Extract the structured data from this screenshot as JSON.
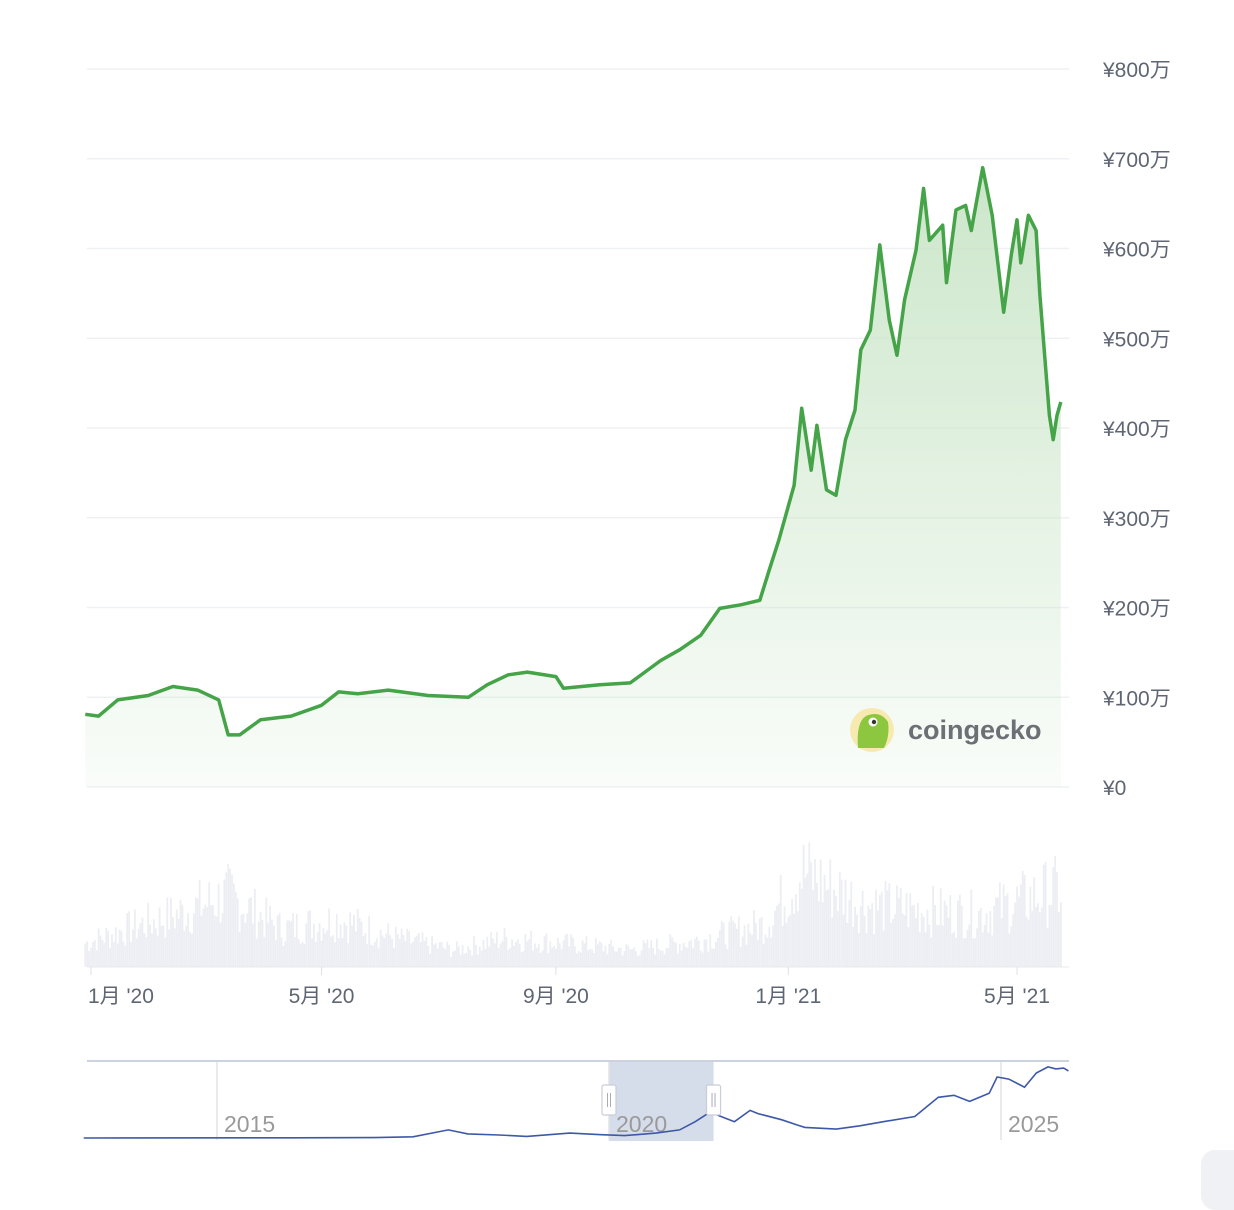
{
  "chart_data": {
    "type": "area",
    "currency_symbol": "¥",
    "y_ticks": [
      "¥0",
      "¥100万",
      "¥200万",
      "¥300万",
      "¥400万",
      "¥500万",
      "¥600万",
      "¥700万",
      "¥800万"
    ],
    "y_unit": "万",
    "ylim": [
      0,
      800
    ],
    "x_ticks": [
      {
        "date": "2020-01-01",
        "label": "1月 '20"
      },
      {
        "date": "2020-05-01",
        "label": "5月 '20"
      },
      {
        "date": "2020-09-01",
        "label": "9月 '20"
      },
      {
        "date": "2021-01-01",
        "label": "1月 '21"
      },
      {
        "date": "2021-05-01",
        "label": "5月 '21"
      }
    ],
    "xlim": [
      "2019-12-29",
      "2021-05-24"
    ],
    "grid": true,
    "line_color": "#45a348",
    "fill_color": "#c9e5c7",
    "price": [
      [
        "2019-12-29",
        81
      ],
      [
        "2020-01-05",
        79
      ],
      [
        "2020-01-15",
        97
      ],
      [
        "2020-01-31",
        102
      ],
      [
        "2020-02-13",
        112
      ],
      [
        "2020-02-26",
        108
      ],
      [
        "2020-03-08",
        97
      ],
      [
        "2020-03-13",
        58
      ],
      [
        "2020-03-19",
        58
      ],
      [
        "2020-03-30",
        75
      ],
      [
        "2020-04-15",
        79
      ],
      [
        "2020-05-01",
        91
      ],
      [
        "2020-05-10",
        106
      ],
      [
        "2020-05-20",
        104
      ],
      [
        "2020-06-05",
        108
      ],
      [
        "2020-06-26",
        102
      ],
      [
        "2020-07-17",
        100
      ],
      [
        "2020-07-27",
        114
      ],
      [
        "2020-08-07",
        125
      ],
      [
        "2020-08-17",
        128
      ],
      [
        "2020-09-01",
        123
      ],
      [
        "2020-09-05",
        110
      ],
      [
        "2020-09-24",
        114
      ],
      [
        "2020-10-10",
        116
      ],
      [
        "2020-10-26",
        141
      ],
      [
        "2020-11-05",
        153
      ],
      [
        "2020-11-16",
        169
      ],
      [
        "2020-11-26",
        199
      ],
      [
        "2020-12-07",
        203
      ],
      [
        "2020-12-17",
        208
      ],
      [
        "2020-12-22",
        242
      ],
      [
        "2020-12-27",
        275
      ],
      [
        "2021-01-04",
        336
      ],
      [
        "2021-01-08",
        422
      ],
      [
        "2021-01-13",
        353
      ],
      [
        "2021-01-16",
        403
      ],
      [
        "2021-01-21",
        331
      ],
      [
        "2021-01-26",
        325
      ],
      [
        "2021-01-31",
        387
      ],
      [
        "2021-02-05",
        420
      ],
      [
        "2021-02-08",
        487
      ],
      [
        "2021-02-13",
        509
      ],
      [
        "2021-02-18",
        604
      ],
      [
        "2021-02-23",
        520
      ],
      [
        "2021-02-27",
        481
      ],
      [
        "2021-03-03",
        543
      ],
      [
        "2021-03-09",
        598
      ],
      [
        "2021-03-13",
        667
      ],
      [
        "2021-03-16",
        609
      ],
      [
        "2021-03-23",
        626
      ],
      [
        "2021-03-25",
        562
      ],
      [
        "2021-03-30",
        643
      ],
      [
        "2021-04-04",
        648
      ],
      [
        "2021-04-07",
        620
      ],
      [
        "2021-04-13",
        690
      ],
      [
        "2021-04-18",
        637
      ],
      [
        "2021-04-24",
        529
      ],
      [
        "2021-04-28",
        593
      ],
      [
        "2021-05-01",
        632
      ],
      [
        "2021-05-03",
        584
      ],
      [
        "2021-05-07",
        637
      ],
      [
        "2021-05-11",
        620
      ],
      [
        "2021-05-13",
        548
      ],
      [
        "2021-05-18",
        414
      ],
      [
        "2021-05-20",
        387
      ],
      [
        "2021-05-22",
        414
      ],
      [
        "2021-05-24",
        429
      ]
    ],
    "volume_color": "#eceef3",
    "volume": [
      [
        "2019-12-29",
        25
      ],
      [
        "2020-01-20",
        40
      ],
      [
        "2020-02-15",
        55
      ],
      [
        "2020-03-13",
        75
      ],
      [
        "2020-04-10",
        40
      ],
      [
        "2020-05-10",
        50
      ],
      [
        "2020-06-10",
        30
      ],
      [
        "2020-07-10",
        18
      ],
      [
        "2020-08-05",
        30
      ],
      [
        "2020-09-05",
        25
      ],
      [
        "2020-10-10",
        18
      ],
      [
        "2020-11-15",
        28
      ],
      [
        "2020-12-20",
        45
      ],
      [
        "2021-01-08",
        100
      ],
      [
        "2021-02-10",
        65
      ],
      [
        "2021-03-10",
        60
      ],
      [
        "2021-04-10",
        55
      ],
      [
        "2021-05-20",
        80
      ]
    ],
    "navigator": {
      "x_ticks": [
        "2015",
        "2020",
        "2025"
      ],
      "line_color": "#3d58a8",
      "selection_color": "#d5dcea",
      "selection_range": [
        "2020-01",
        "2021-05"
      ],
      "series": [
        [
          2013.3,
          1
        ],
        [
          2016.0,
          5
        ],
        [
          2017.0,
          11
        ],
        [
          2017.5,
          30
        ],
        [
          2017.95,
          200
        ],
        [
          2018.2,
          100
        ],
        [
          2018.6,
          75
        ],
        [
          2018.95,
          40
        ],
        [
          2019.5,
          120
        ],
        [
          2019.9,
          80
        ],
        [
          2020.2,
          60
        ],
        [
          2020.6,
          120
        ],
        [
          2020.9,
          200
        ],
        [
          2021.1,
          400
        ],
        [
          2021.3,
          650
        ],
        [
          2021.4,
          550
        ],
        [
          2021.6,
          400
        ],
        [
          2021.8,
          680
        ],
        [
          2021.9,
          600
        ],
        [
          2022.2,
          450
        ],
        [
          2022.4,
          320
        ],
        [
          2022.5,
          260
        ],
        [
          2022.9,
          220
        ],
        [
          2023.2,
          300
        ],
        [
          2023.5,
          400
        ],
        [
          2023.9,
          530
        ],
        [
          2024.2,
          1000
        ],
        [
          2024.4,
          1050
        ],
        [
          2024.6,
          900
        ],
        [
          2024.85,
          1100
        ],
        [
          2024.95,
          1500
        ],
        [
          2025.1,
          1450
        ],
        [
          2025.3,
          1250
        ],
        [
          2025.45,
          1600
        ],
        [
          2025.6,
          1750
        ],
        [
          2025.7,
          1700
        ],
        [
          2025.8,
          1720
        ],
        [
          2025.86,
          1650
        ]
      ]
    }
  },
  "watermark": {
    "text": "coingecko"
  }
}
